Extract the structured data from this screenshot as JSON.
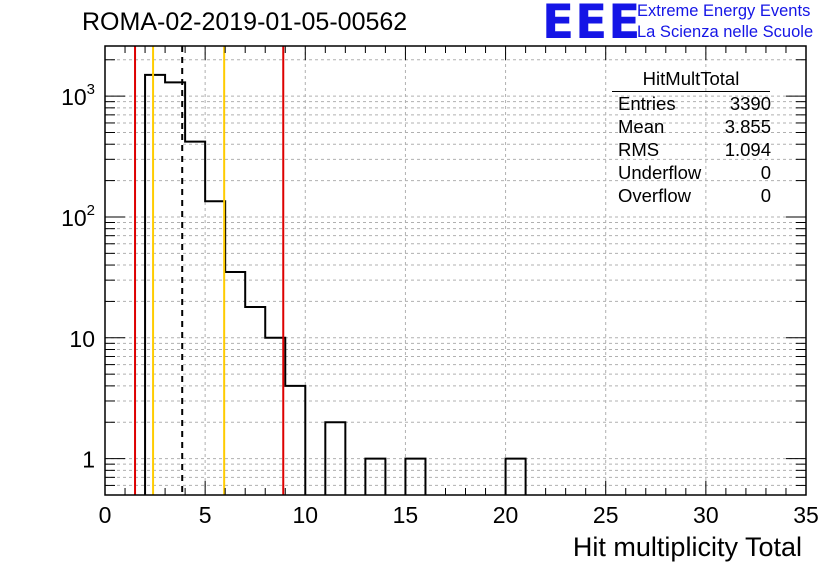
{
  "header": {
    "title": "ROMA-02-2019-01-05-00562",
    "logo_text": "EEE",
    "logo_line1": "Extreme Energy Events",
    "logo_line2": "La Scienza nelle Scuole"
  },
  "stats": {
    "title": "HitMultTotal",
    "rows": [
      {
        "label": "Entries",
        "value": "3390"
      },
      {
        "label": "Mean",
        "value": "3.855"
      },
      {
        "label": "RMS",
        "value": "1.094"
      },
      {
        "label": "Underflow",
        "value": "0"
      },
      {
        "label": "Overflow",
        "value": "0"
      }
    ]
  },
  "colors": {
    "histogram": "#000000",
    "red_line": "#dd0000",
    "yellow_line": "#ffcc00",
    "mean_line": "#000000",
    "grid": "#b0b0b0"
  },
  "chart_data": {
    "type": "bar",
    "xlabel": "Hit multiplicity Total",
    "ylabel": "",
    "xlim": [
      0,
      35
    ],
    "ylim": [
      0.5,
      2600
    ],
    "log_y": true,
    "grid": true,
    "bin_width": 1,
    "bins": [
      {
        "x": 2.5,
        "y": 1500
      },
      {
        "x": 3.5,
        "y": 1300
      },
      {
        "x": 4.5,
        "y": 420
      },
      {
        "x": 5.5,
        "y": 135
      },
      {
        "x": 6.5,
        "y": 35
      },
      {
        "x": 7.5,
        "y": 18
      },
      {
        "x": 8.5,
        "y": 10
      },
      {
        "x": 9.5,
        "y": 4
      },
      {
        "x": 11.5,
        "y": 2
      },
      {
        "x": 13.5,
        "y": 1
      },
      {
        "x": 15.5,
        "y": 1
      },
      {
        "x": 20.5,
        "y": 1
      }
    ],
    "x_ticks": [
      "0",
      "5",
      "10",
      "15",
      "20",
      "25",
      "30",
      "35"
    ],
    "x_tick_values": [
      0,
      5,
      10,
      15,
      20,
      25,
      30,
      35
    ],
    "y_ticks": [
      {
        "value": 1,
        "base": "1",
        "exp": ""
      },
      {
        "value": 10,
        "base": "10",
        "exp": ""
      },
      {
        "value": 100,
        "base": "10",
        "exp": "2"
      },
      {
        "value": 1000,
        "base": "10",
        "exp": "3"
      }
    ],
    "vertical_lines": [
      {
        "x": 1.5,
        "color": "red",
        "style": "solid"
      },
      {
        "x": 2.4,
        "color": "yellow",
        "style": "solid"
      },
      {
        "x": 3.855,
        "color": "mean",
        "style": "dashed"
      },
      {
        "x": 5.95,
        "color": "yellow",
        "style": "solid"
      },
      {
        "x": 8.9,
        "color": "red",
        "style": "solid"
      }
    ]
  }
}
